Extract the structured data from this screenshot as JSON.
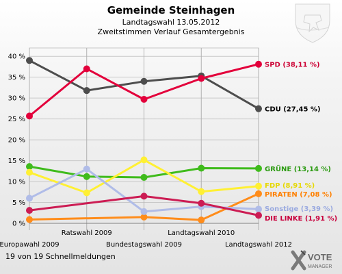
{
  "chart_data": {
    "type": "line",
    "title": "Gemeinde Steinhagen",
    "subtitle_1": "Landtagswahl 13.05.2012",
    "subtitle_2": "Zweitstimmen Verlauf Gesamtergebnis",
    "categories": [
      "Europawahl 2009",
      "Ratswahl 2009",
      "Bundestagswahl 2009",
      "Landtagswahl 2010",
      "Landtagswahl 2012"
    ],
    "yticks": [
      "0 %",
      "5 %",
      "10 %",
      "15 %",
      "20 %",
      "25 %",
      "30 %",
      "35 %",
      "40 %"
    ],
    "ylim": [
      0,
      42
    ],
    "grid": true,
    "series": [
      {
        "name": "CDU",
        "end_label": "CDU (27,45 %)",
        "color": "#4d4d4d",
        "label_color": "#000000",
        "values": [
          39.0,
          31.8,
          34.0,
          35.3,
          27.45
        ]
      },
      {
        "name": "SPD",
        "end_label": "SPD (38,11 %)",
        "color": "#e3003b",
        "label_color": "#cc0033",
        "values": [
          25.7,
          37.0,
          29.7,
          34.7,
          38.11
        ]
      },
      {
        "name": "GRÜNE",
        "end_label": "GRÜNE (13,14 %)",
        "color": "#3fbb1c",
        "label_color": "#2a9a10",
        "values": [
          13.6,
          11.2,
          11.0,
          13.2,
          13.14
        ]
      },
      {
        "name": "FDP",
        "end_label": "FDP (8,91 %)",
        "color": "#fff033",
        "label_color": "#e6d800",
        "values": [
          12.2,
          7.3,
          15.2,
          7.6,
          8.91
        ]
      },
      {
        "name": "PIRATEN",
        "end_label": "PIRATEN (7,08 %)",
        "color": "#ff8c1a",
        "label_color": "#ff8000",
        "values": [
          0.9,
          null,
          1.5,
          0.8,
          7.08
        ]
      },
      {
        "name": "Sonstige",
        "end_label": "Sonstige (3,39 %)",
        "color": "#b0bce8",
        "label_color": "#9aaae0",
        "values": [
          6.0,
          13.0,
          2.8,
          4.0,
          3.39
        ]
      },
      {
        "name": "DIE LINKE",
        "end_label": "DIE LINKE (1,91 %)",
        "color": "#cc1c53",
        "label_color": "#c8003c",
        "values": [
          3.1,
          null,
          6.5,
          4.8,
          1.91
        ]
      }
    ]
  },
  "footer": {
    "note": "19 von 19 Schnellmeldungen",
    "logo_line1": "VOTE",
    "logo_line2": "MANAGER"
  }
}
